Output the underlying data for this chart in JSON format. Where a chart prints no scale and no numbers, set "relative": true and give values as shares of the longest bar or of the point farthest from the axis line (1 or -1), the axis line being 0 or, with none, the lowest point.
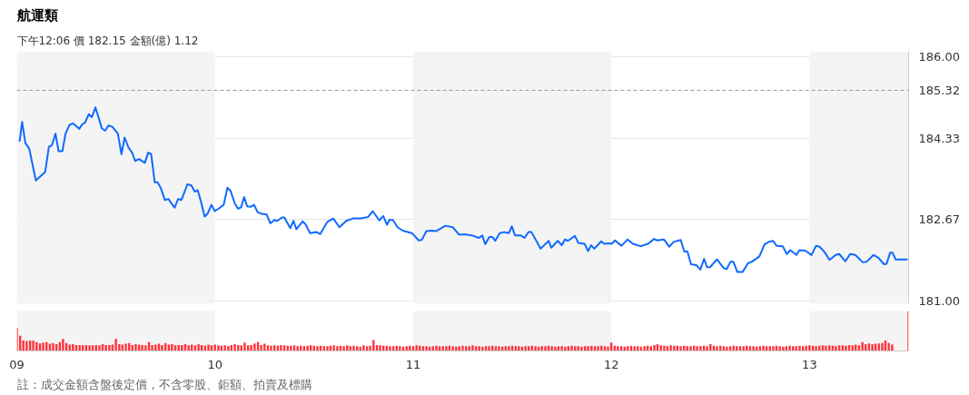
{
  "chart_data": [
    {
      "type": "line",
      "title": "航運類",
      "subtitle": "下午12:06  價 182.15  金額(億) 1.12",
      "x": [
        9.014,
        9.027,
        9.043,
        9.063,
        9.096,
        9.143,
        9.162,
        9.177,
        9.195,
        9.211,
        9.23,
        9.246,
        9.266,
        9.284,
        9.315,
        9.33,
        9.345,
        9.363,
        9.379,
        9.397,
        9.429,
        9.446,
        9.463,
        9.482,
        9.51,
        9.528,
        9.544,
        9.563,
        9.582,
        9.597,
        9.617,
        9.646,
        9.663,
        9.678,
        9.696,
        9.711,
        9.727,
        9.747,
        9.765,
        9.796,
        9.814,
        9.831,
        9.861,
        9.88,
        9.898,
        9.913,
        9.929,
        9.948,
        9.963,
        9.982,
        9.999,
        10.025,
        10.044,
        10.063,
        10.078,
        10.101,
        10.116,
        10.132,
        10.147,
        10.162,
        10.182,
        10.197,
        10.215,
        10.231,
        10.261,
        10.279,
        10.3,
        10.315,
        10.338,
        10.35,
        10.38,
        10.396,
        10.411,
        10.442,
        10.457,
        10.48,
        10.513,
        10.531,
        10.567,
        10.597,
        10.628,
        10.662,
        10.696,
        10.735,
        10.773,
        10.796,
        10.829,
        10.849,
        10.868,
        10.88,
        10.898,
        10.921,
        10.948,
        10.994,
        11.028,
        11.043,
        11.067,
        11.094,
        11.116,
        11.162,
        11.2,
        11.231,
        11.266,
        11.3,
        11.33,
        11.349,
        11.364,
        11.384,
        11.399,
        11.414,
        11.437,
        11.46,
        11.483,
        11.498,
        11.514,
        11.544,
        11.562,
        11.582,
        11.597,
        11.643,
        11.684,
        11.697,
        11.73,
        11.75,
        11.766,
        11.781,
        11.816,
        11.834,
        11.865,
        11.883,
        11.898,
        11.914,
        11.949,
        11.964,
        11.987,
        12.002,
        12.018,
        12.051,
        12.082,
        12.109,
        12.147,
        12.185,
        12.216,
        12.231,
        12.265,
        12.292,
        12.315,
        12.35,
        12.368,
        12.384,
        12.402,
        12.43,
        12.449,
        12.468,
        12.483,
        12.498,
        12.533,
        12.567,
        12.582,
        12.601,
        12.616,
        12.636,
        12.662,
        12.689,
        12.712,
        12.747,
        12.773,
        12.796,
        12.816,
        12.834,
        12.865,
        12.885,
        12.903,
        12.934,
        12.949,
        12.979,
        13.01,
        13.033,
        13.051,
        13.078,
        13.101,
        13.132,
        13.15,
        13.181,
        13.205,
        13.231,
        13.269,
        13.288,
        13.323,
        13.346,
        13.376,
        13.389,
        13.407,
        13.419,
        13.434,
        13.495
      ],
      "series": [
        {
          "color": "#0f69ff",
          "values": [
            184.27,
            184.67,
            184.24,
            184.12,
            183.47,
            183.64,
            184.16,
            184.19,
            184.43,
            184.07,
            184.07,
            184.43,
            184.61,
            184.64,
            184.53,
            184.62,
            184.66,
            184.83,
            184.77,
            184.97,
            184.54,
            184.49,
            184.6,
            184.57,
            184.43,
            184.01,
            184.35,
            184.15,
            184.04,
            183.87,
            183.91,
            183.83,
            184.04,
            184.01,
            183.43,
            183.43,
            183.31,
            183.07,
            183.09,
            182.91,
            183.09,
            183.07,
            183.39,
            183.37,
            183.24,
            183.27,
            183.04,
            182.73,
            182.79,
            182.97,
            182.84,
            182.91,
            182.97,
            183.32,
            183.26,
            182.99,
            182.89,
            182.92,
            183.13,
            182.94,
            182.93,
            182.97,
            182.82,
            182.79,
            182.77,
            182.59,
            182.66,
            182.64,
            182.71,
            182.71,
            182.49,
            182.64,
            182.47,
            182.63,
            182.57,
            182.39,
            182.41,
            182.37,
            182.62,
            182.69,
            182.51,
            182.64,
            182.69,
            182.69,
            182.72,
            182.84,
            182.65,
            182.74,
            182.56,
            182.66,
            182.66,
            182.51,
            182.44,
            182.39,
            182.24,
            182.25,
            182.43,
            182.44,
            182.43,
            182.54,
            182.51,
            182.36,
            182.36,
            182.34,
            182.29,
            182.34,
            182.16,
            182.31,
            182.31,
            182.23,
            182.39,
            182.41,
            182.39,
            182.53,
            182.34,
            182.34,
            182.29,
            182.41,
            182.41,
            182.07,
            182.23,
            182.09,
            182.23,
            182.14,
            182.26,
            182.23,
            182.33,
            182.19,
            182.17,
            182.02,
            182.14,
            182.07,
            182.22,
            182.17,
            182.18,
            182.17,
            182.24,
            182.13,
            182.26,
            182.17,
            182.12,
            182.17,
            182.27,
            182.24,
            182.26,
            182.11,
            182.21,
            182.25,
            182.01,
            182.01,
            181.75,
            181.73,
            181.64,
            181.86,
            181.69,
            181.69,
            181.85,
            181.67,
            181.65,
            181.8,
            181.8,
            181.59,
            181.59,
            181.77,
            181.81,
            181.91,
            182.16,
            182.21,
            182.23,
            182.13,
            182.12,
            181.96,
            182.04,
            181.94,
            182.04,
            182.03,
            181.94,
            182.13,
            182.11,
            181.99,
            181.84,
            181.94,
            181.96,
            181.81,
            181.96,
            181.94,
            181.79,
            181.8,
            181.94,
            181.89,
            181.75,
            181.76,
            181.99,
            181.99,
            181.85,
            181.85
          ]
        }
      ],
      "xlim": [
        9,
        13.5
      ],
      "ylim": [
        180.94,
        186.12
      ],
      "yticks": [
        {
          "value": 181,
          "label": "181.00"
        },
        {
          "value": 182.67,
          "label": "182.67"
        },
        {
          "value": 184.33,
          "label": "184.33"
        },
        {
          "value": 186,
          "label": "186.00"
        }
      ],
      "grid": "y",
      "tick_labels": "y",
      "line_style": "solid",
      "ref_lines": [
        {
          "axis": "y",
          "value": 185.32,
          "label": "185.32",
          "color": "#999999",
          "line_style": "dashed"
        }
      ],
      "bands": [
        {
          "axis": "x",
          "from": 9,
          "to": 10,
          "color": "#f4f4f4"
        },
        {
          "axis": "x",
          "from": 11,
          "to": 12,
          "color": "#f4f4f4"
        },
        {
          "axis": "x",
          "from": 13,
          "to": 13.5,
          "color": "#f4f4f4"
        }
      ]
    },
    {
      "type": "bar",
      "relative": true,
      "color": "#ff333a",
      "x": [
        9,
        9.017,
        9.033,
        9.05,
        9.067,
        9.083,
        9.1,
        9.117,
        9.133,
        9.15,
        9.167,
        9.183,
        9.2,
        9.217,
        9.233,
        9.25,
        9.267,
        9.283,
        9.3,
        9.317,
        9.333,
        9.35,
        9.367,
        9.383,
        9.4,
        9.417,
        9.433,
        9.45,
        9.467,
        9.483,
        9.5,
        9.517,
        9.533,
        9.55,
        9.567,
        9.583,
        9.6,
        9.617,
        9.633,
        9.65,
        9.667,
        9.683,
        9.7,
        9.717,
        9.733,
        9.75,
        9.767,
        9.783,
        9.8,
        9.817,
        9.833,
        9.85,
        9.867,
        9.883,
        9.9,
        9.917,
        9.933,
        9.95,
        9.967,
        9.983,
        10,
        10.017,
        10.033,
        10.05,
        10.067,
        10.083,
        10.1,
        10.117,
        10.133,
        10.15,
        10.167,
        10.183,
        10.2,
        10.217,
        10.233,
        10.25,
        10.267,
        10.283,
        10.3,
        10.317,
        10.333,
        10.35,
        10.367,
        10.383,
        10.4,
        10.417,
        10.433,
        10.45,
        10.467,
        10.483,
        10.5,
        10.517,
        10.533,
        10.55,
        10.567,
        10.583,
        10.6,
        10.617,
        10.633,
        10.65,
        10.667,
        10.683,
        10.7,
        10.717,
        10.733,
        10.75,
        10.767,
        10.783,
        10.8,
        10.817,
        10.833,
        10.85,
        10.867,
        10.883,
        10.9,
        10.917,
        10.933,
        10.95,
        10.967,
        10.983,
        11,
        11.017,
        11.033,
        11.05,
        11.067,
        11.083,
        11.1,
        11.117,
        11.133,
        11.15,
        11.167,
        11.183,
        11.2,
        11.217,
        11.233,
        11.25,
        11.267,
        11.283,
        11.3,
        11.317,
        11.333,
        11.35,
        11.367,
        11.383,
        11.4,
        11.417,
        11.433,
        11.45,
        11.467,
        11.483,
        11.5,
        11.517,
        11.533,
        11.55,
        11.567,
        11.583,
        11.6,
        11.617,
        11.633,
        11.65,
        11.667,
        11.683,
        11.7,
        11.717,
        11.733,
        11.75,
        11.767,
        11.783,
        11.8,
        11.817,
        11.833,
        11.85,
        11.867,
        11.883,
        11.9,
        11.917,
        11.933,
        11.95,
        11.967,
        11.983,
        12,
        12.017,
        12.033,
        12.05,
        12.067,
        12.083,
        12.1,
        12.117,
        12.133,
        12.15,
        12.167,
        12.183,
        12.2,
        12.217,
        12.233,
        12.25,
        12.267,
        12.283,
        12.3,
        12.317,
        12.333,
        12.35,
        12.367,
        12.383,
        12.4,
        12.417,
        12.433,
        12.45,
        12.467,
        12.483,
        12.5,
        12.517,
        12.533,
        12.55,
        12.567,
        12.583,
        12.6,
        12.617,
        12.633,
        12.65,
        12.667,
        12.683,
        12.7,
        12.717,
        12.733,
        12.75,
        12.767,
        12.783,
        12.8,
        12.817,
        12.833,
        12.85,
        12.867,
        12.883,
        12.9,
        12.917,
        12.933,
        12.95,
        12.967,
        12.983,
        13,
        13.017,
        13.033,
        13.05,
        13.067,
        13.083,
        13.1,
        13.117,
        13.133,
        13.15,
        13.167,
        13.183,
        13.2,
        13.217,
        13.233,
        13.25,
        13.267,
        13.283,
        13.3,
        13.317,
        13.333,
        13.35,
        13.367,
        13.383,
        13.4,
        13.417,
        13.5
      ],
      "values": [
        0.58,
        0.38,
        0.26,
        0.25,
        0.26,
        0.26,
        0.22,
        0.19,
        0.21,
        0.22,
        0.18,
        0.2,
        0.17,
        0.22,
        0.3,
        0.2,
        0.16,
        0.17,
        0.15,
        0.15,
        0.14,
        0.15,
        0.14,
        0.14,
        0.15,
        0.14,
        0.17,
        0.15,
        0.15,
        0.16,
        0.3,
        0.17,
        0.16,
        0.18,
        0.2,
        0.15,
        0.17,
        0.16,
        0.15,
        0.14,
        0.22,
        0.15,
        0.16,
        0.18,
        0.15,
        0.2,
        0.16,
        0.17,
        0.14,
        0.15,
        0.15,
        0.17,
        0.14,
        0.16,
        0.14,
        0.17,
        0.15,
        0.13,
        0.16,
        0.14,
        0.16,
        0.14,
        0.13,
        0.14,
        0.12,
        0.15,
        0.17,
        0.15,
        0.14,
        0.21,
        0.14,
        0.15,
        0.19,
        0.22,
        0.15,
        0.18,
        0.14,
        0.13,
        0.14,
        0.13,
        0.15,
        0.14,
        0.13,
        0.13,
        0.14,
        0.12,
        0.13,
        0.12,
        0.13,
        0.14,
        0.13,
        0.12,
        0.13,
        0.12,
        0.12,
        0.13,
        0.14,
        0.12,
        0.13,
        0.12,
        0.14,
        0.12,
        0.13,
        0.12,
        0.11,
        0.14,
        0.12,
        0.13,
        0.27,
        0.15,
        0.14,
        0.13,
        0.13,
        0.12,
        0.12,
        0.13,
        0.12,
        0.11,
        0.12,
        0.13,
        0.12,
        0.14,
        0.13,
        0.12,
        0.12,
        0.11,
        0.12,
        0.13,
        0.12,
        0.12,
        0.12,
        0.13,
        0.12,
        0.11,
        0.12,
        0.13,
        0.12,
        0.12,
        0.14,
        0.12,
        0.12,
        0.11,
        0.12,
        0.12,
        0.13,
        0.12,
        0.12,
        0.11,
        0.12,
        0.12,
        0.13,
        0.12,
        0.12,
        0.11,
        0.12,
        0.12,
        0.13,
        0.12,
        0.11,
        0.12,
        0.12,
        0.13,
        0.12,
        0.11,
        0.12,
        0.12,
        0.11,
        0.12,
        0.13,
        0.12,
        0.12,
        0.11,
        0.12,
        0.12,
        0.13,
        0.12,
        0.12,
        0.13,
        0.12,
        0.11,
        0.21,
        0.13,
        0.12,
        0.12,
        0.11,
        0.12,
        0.13,
        0.12,
        0.12,
        0.11,
        0.12,
        0.13,
        0.12,
        0.15,
        0.17,
        0.14,
        0.13,
        0.12,
        0.14,
        0.13,
        0.13,
        0.12,
        0.13,
        0.12,
        0.12,
        0.13,
        0.12,
        0.12,
        0.13,
        0.12,
        0.17,
        0.13,
        0.12,
        0.13,
        0.12,
        0.11,
        0.12,
        0.13,
        0.12,
        0.12,
        0.12,
        0.13,
        0.12,
        0.12,
        0.11,
        0.12,
        0.13,
        0.12,
        0.12,
        0.12,
        0.13,
        0.12,
        0.11,
        0.12,
        0.13,
        0.12,
        0.12,
        0.13,
        0.12,
        0.13,
        0.14,
        0.13,
        0.12,
        0.13,
        0.14,
        0.13,
        0.14,
        0.13,
        0.12,
        0.14,
        0.14,
        0.13,
        0.15,
        0.14,
        0.16,
        0.14,
        0.22,
        0.17,
        0.19,
        0.17,
        0.18,
        0.19,
        0.2,
        0.26,
        0.2,
        0.16,
        1
      ],
      "xlim": [
        9,
        13.5
      ],
      "xticks": [
        {
          "value": 9,
          "label": "09"
        },
        {
          "value": 10,
          "label": "10"
        },
        {
          "value": 11,
          "label": "11"
        },
        {
          "value": 12,
          "label": "12"
        },
        {
          "value": 13,
          "label": "13"
        }
      ],
      "tick_labels": "x",
      "grid": false,
      "annotations": [
        "註：成交金額含盤後定價，不含零股、鉅額、拍賣及標購"
      ],
      "bands": [
        {
          "axis": "x",
          "from": 9,
          "to": 10,
          "color": "#f4f4f4"
        },
        {
          "axis": "x",
          "from": 11,
          "to": 12,
          "color": "#f4f4f4"
        },
        {
          "axis": "x",
          "from": 13,
          "to": 13.5,
          "color": "#f4f4f4"
        }
      ]
    }
  ]
}
